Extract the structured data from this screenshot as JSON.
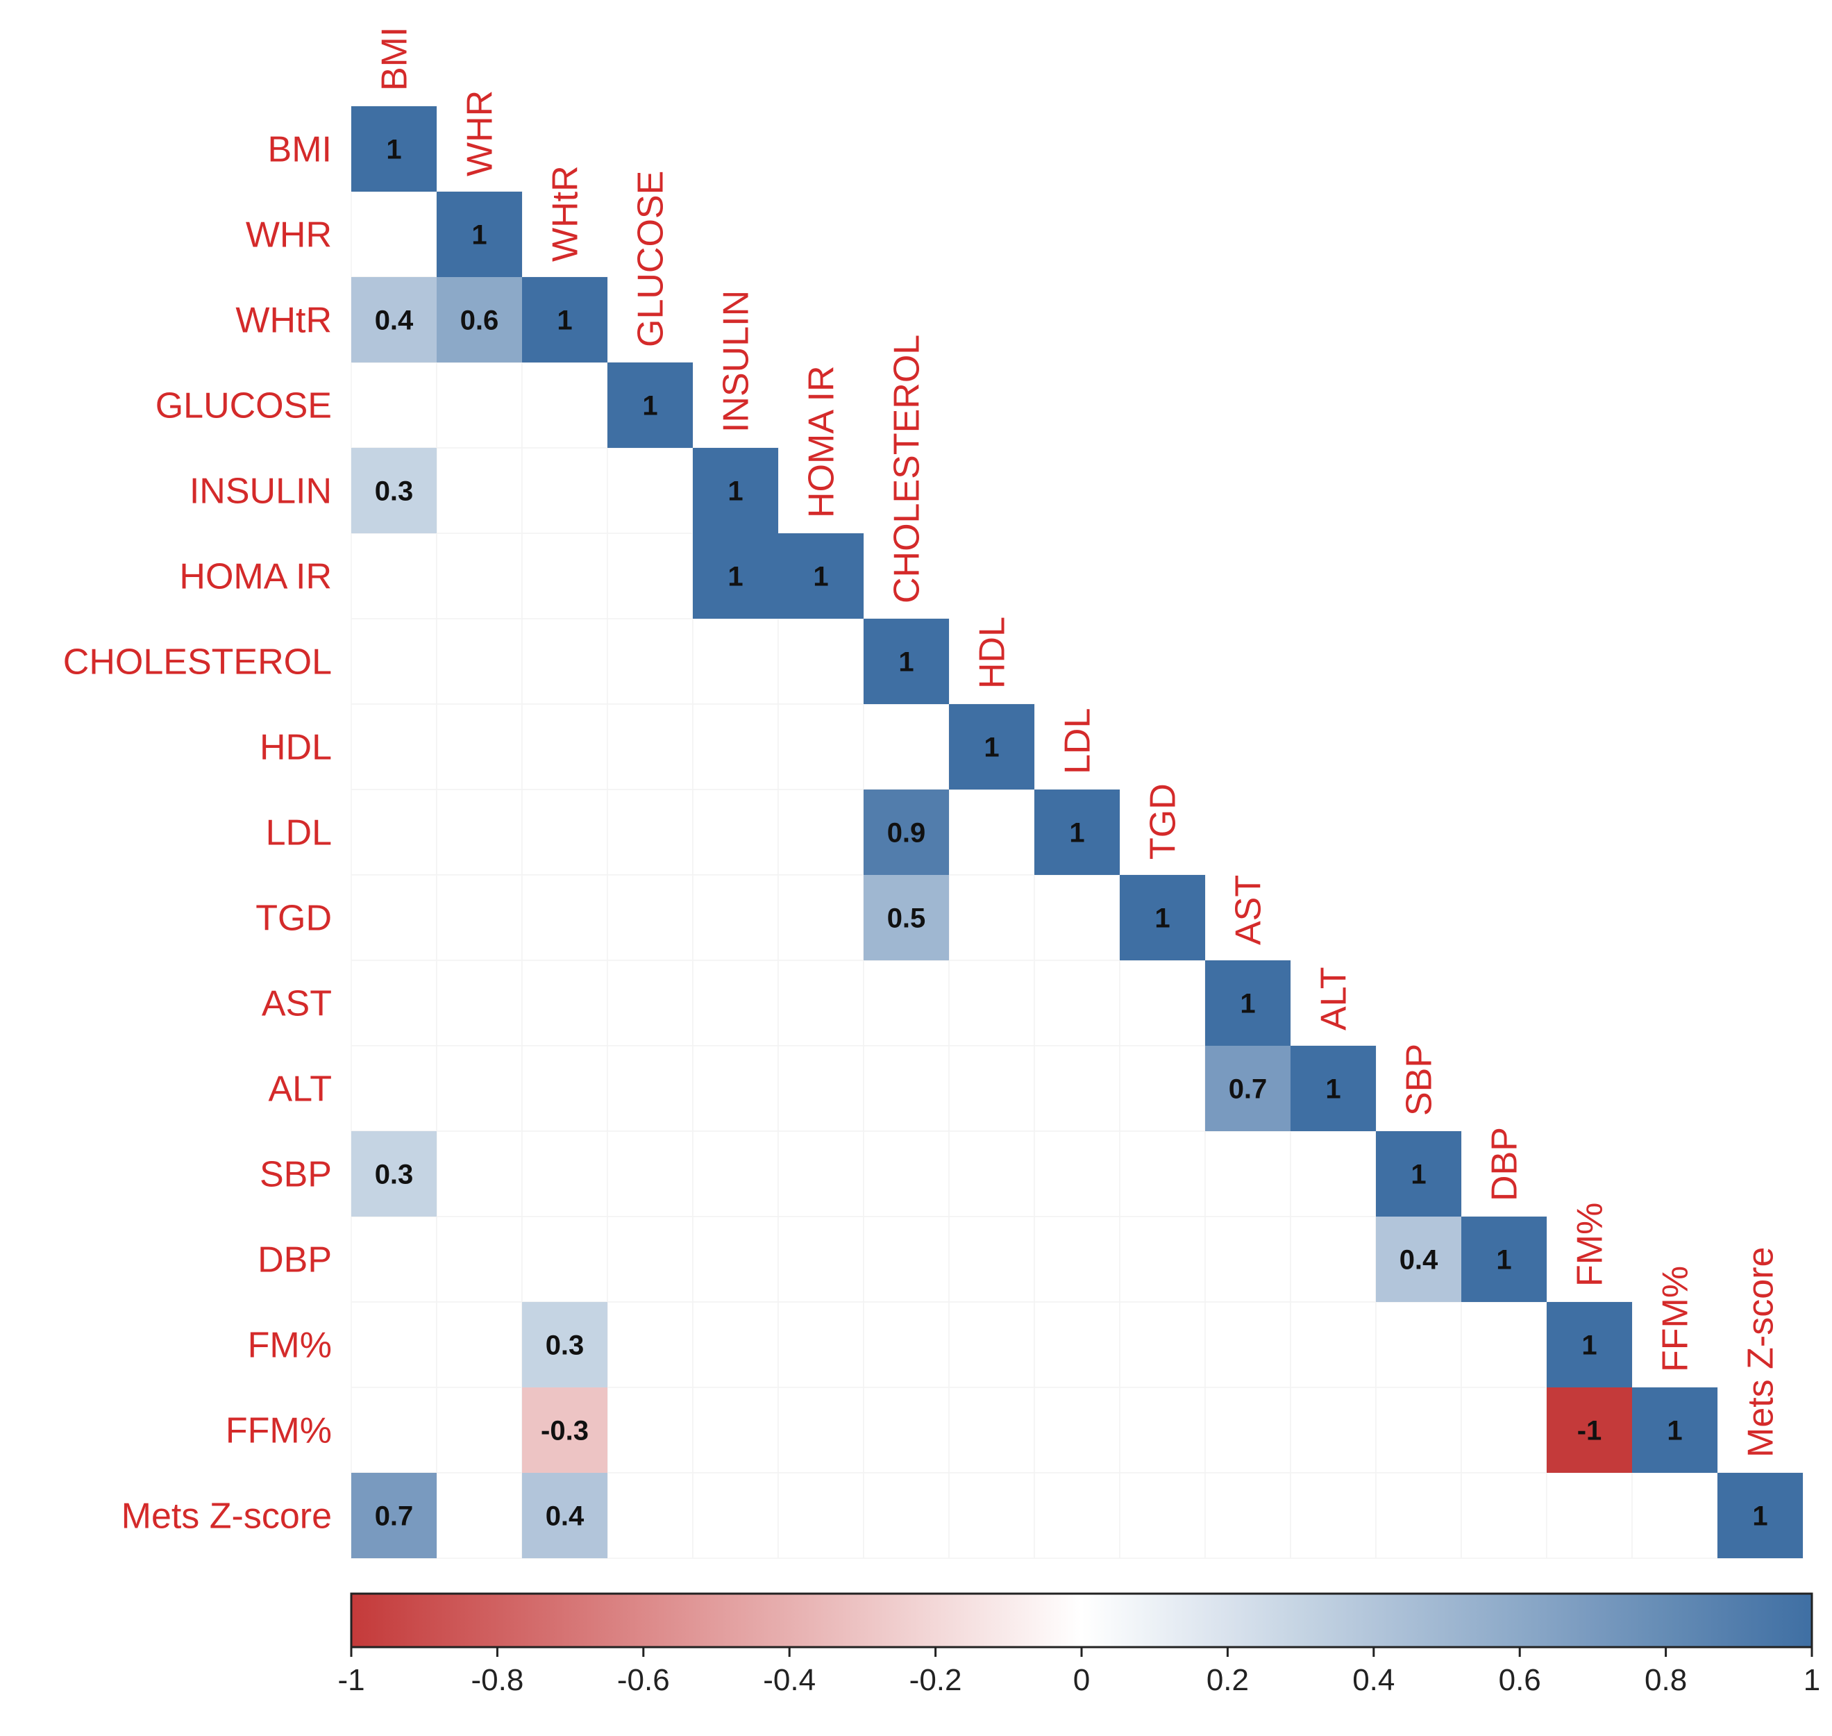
{
  "chart_data": {
    "type": "heatmap",
    "title": "",
    "variables": [
      "BMI",
      "WHR",
      "WHtR",
      "GLUCOSE",
      "INSULIN",
      "HOMA IR",
      "CHOLESTEROL",
      "HDL",
      "LDL",
      "TGD",
      "AST",
      "ALT",
      "SBP",
      "DBP",
      "FM%",
      "FFM%",
      "Mets Z-score"
    ],
    "cells": [
      {
        "row": 0,
        "col": 0,
        "value": 1,
        "label": "1"
      },
      {
        "row": 1,
        "col": 1,
        "value": 1,
        "label": "1"
      },
      {
        "row": 2,
        "col": 0,
        "value": 0.4,
        "label": "0.4"
      },
      {
        "row": 2,
        "col": 1,
        "value": 0.6,
        "label": "0.6"
      },
      {
        "row": 2,
        "col": 2,
        "value": 1,
        "label": "1"
      },
      {
        "row": 3,
        "col": 3,
        "value": 1,
        "label": "1"
      },
      {
        "row": 4,
        "col": 0,
        "value": 0.3,
        "label": "0.3"
      },
      {
        "row": 4,
        "col": 4,
        "value": 1,
        "label": "1"
      },
      {
        "row": 5,
        "col": 4,
        "value": 1,
        "label": "1"
      },
      {
        "row": 5,
        "col": 5,
        "value": 1,
        "label": "1"
      },
      {
        "row": 6,
        "col": 6,
        "value": 1,
        "label": "1"
      },
      {
        "row": 7,
        "col": 7,
        "value": 1,
        "label": "1"
      },
      {
        "row": 8,
        "col": 6,
        "value": 0.9,
        "label": "0.9"
      },
      {
        "row": 8,
        "col": 8,
        "value": 1,
        "label": "1"
      },
      {
        "row": 9,
        "col": 6,
        "value": 0.5,
        "label": "0.5"
      },
      {
        "row": 9,
        "col": 9,
        "value": 1,
        "label": "1"
      },
      {
        "row": 10,
        "col": 10,
        "value": 1,
        "label": "1"
      },
      {
        "row": 11,
        "col": 10,
        "value": 0.7,
        "label": "0.7"
      },
      {
        "row": 11,
        "col": 11,
        "value": 1,
        "label": "1"
      },
      {
        "row": 12,
        "col": 0,
        "value": 0.3,
        "label": "0.3"
      },
      {
        "row": 12,
        "col": 12,
        "value": 1,
        "label": "1"
      },
      {
        "row": 13,
        "col": 12,
        "value": 0.4,
        "label": "0.4"
      },
      {
        "row": 13,
        "col": 13,
        "value": 1,
        "label": "1"
      },
      {
        "row": 14,
        "col": 2,
        "value": 0.3,
        "label": "0.3"
      },
      {
        "row": 14,
        "col": 14,
        "value": 1,
        "label": "1"
      },
      {
        "row": 15,
        "col": 2,
        "value": -0.3,
        "label": "-0.3"
      },
      {
        "row": 15,
        "col": 14,
        "value": -1,
        "label": "-1"
      },
      {
        "row": 15,
        "col": 15,
        "value": 1,
        "label": "1"
      },
      {
        "row": 16,
        "col": 0,
        "value": 0.7,
        "label": "0.7"
      },
      {
        "row": 16,
        "col": 2,
        "value": 0.4,
        "label": "0.4"
      },
      {
        "row": 16,
        "col": 16,
        "value": 1,
        "label": "1"
      }
    ],
    "colorbar": {
      "range": [
        -1,
        1
      ],
      "ticks": [
        -1,
        -0.8,
        -0.6,
        -0.4,
        -0.2,
        0,
        0.2,
        0.4,
        0.6,
        0.8,
        1
      ],
      "tick_labels": [
        "-1",
        "-0.8",
        "-0.6",
        "-0.4",
        "-0.2",
        "0",
        "0.2",
        "0.4",
        "0.6",
        "0.8",
        "1"
      ],
      "colors": {
        "negative": "#c43a3a",
        "neutral": "#ffffff",
        "positive": "#3f6fa3"
      }
    },
    "label_color": "#d42a2a"
  }
}
